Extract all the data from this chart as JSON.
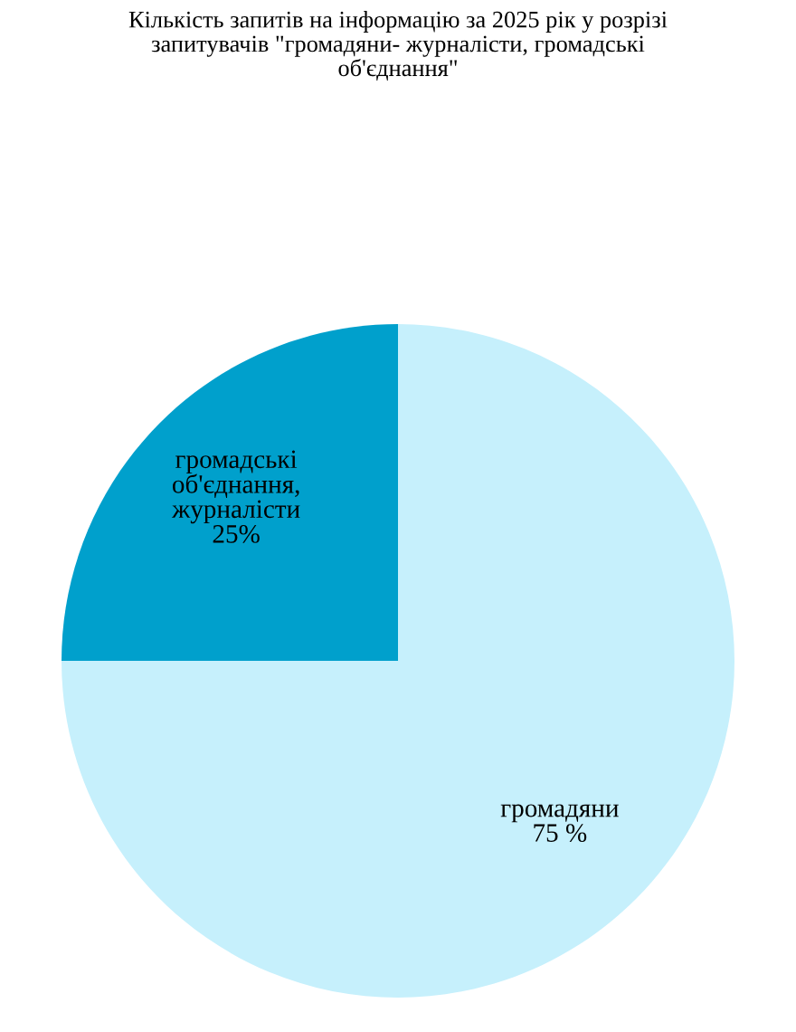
{
  "chart_data": {
    "type": "pie",
    "title": "Кількість запитів на інформацію за 2025 рік у розрізі\nзапитувачів \"громадяни- журналісти, громадські\nоб'єднання\"",
    "categories": [
      "громадські\nоб'єднання,\nжурналісти",
      "громадяни"
    ],
    "values": [
      25,
      75
    ],
    "value_labels": [
      "25%",
      "75 %"
    ],
    "colors": [
      "#00a0cc",
      "#c6f0fc"
    ]
  }
}
